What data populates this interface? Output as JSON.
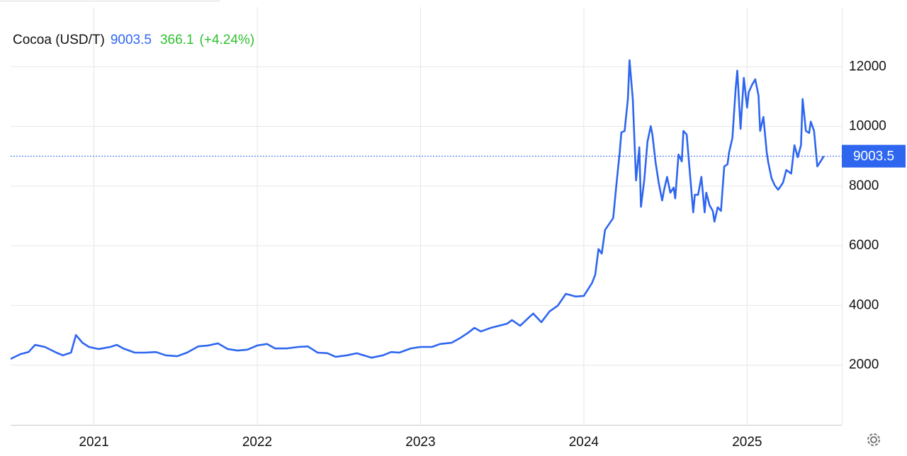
{
  "chart_data": {
    "type": "line",
    "title": "Cocoa (USD/T)",
    "change": 366.1,
    "change_label": "(+4.24%)",
    "xlim": [
      2020.49,
      2025.58
    ],
    "ylim": [
      0,
      14000
    ],
    "xticks": [
      2021,
      2022,
      2023,
      2024,
      2025
    ],
    "yticks": [
      2000,
      4000,
      6000,
      8000,
      10000,
      12000
    ],
    "grid": true,
    "series": [
      {
        "color": "#2e66f0",
        "x": [
          2020.49,
          2020.55,
          2020.6,
          2020.64,
          2020.7,
          2020.77,
          2020.81,
          2020.86,
          2020.89,
          2020.93,
          2020.97,
          2021.03,
          2021.1,
          2021.14,
          2021.18,
          2021.25,
          2021.31,
          2021.38,
          2021.44,
          2021.51,
          2021.57,
          2021.64,
          2021.7,
          2021.76,
          2021.82,
          2021.88,
          2021.94,
          2022.0,
          2022.06,
          2022.11,
          2022.18,
          2022.25,
          2022.31,
          2022.37,
          2022.43,
          2022.48,
          2022.55,
          2022.61,
          2022.7,
          2022.77,
          2022.82,
          2022.87,
          2022.94,
          2023.0,
          2023.07,
          2023.12,
          2023.19,
          2023.24,
          2023.29,
          2023.33,
          2023.37,
          2023.43,
          2023.48,
          2023.53,
          2023.56,
          2023.61,
          2023.66,
          2023.69,
          2023.74,
          2023.79,
          2023.84,
          2023.89,
          2023.95,
          2024.0,
          2024.05,
          2024.07,
          2024.09,
          2024.11,
          2024.13,
          2024.18,
          2024.2,
          2024.22,
          2024.23,
          2024.25,
          2024.27,
          2024.28,
          2024.3,
          2024.32,
          2024.34,
          2024.35,
          2024.37,
          2024.39,
          2024.41,
          2024.42,
          2024.44,
          2024.46,
          2024.48,
          2024.49,
          2024.51,
          2024.53,
          2024.55,
          2024.56,
          2024.58,
          2024.6,
          2024.61,
          2024.63,
          2024.65,
          2024.67,
          2024.68,
          2024.7,
          2024.72,
          2024.74,
          2024.75,
          2024.77,
          2024.79,
          2024.8,
          2024.82,
          2024.84,
          2024.86,
          2024.88,
          2024.89,
          2024.91,
          2024.93,
          2024.94,
          2024.96,
          2024.98,
          2025.0,
          2025.01,
          2025.03,
          2025.05,
          2025.07,
          2025.08,
          2025.1,
          2025.12,
          2025.13,
          2025.15,
          2025.17,
          2025.19,
          2025.2,
          2025.22,
          2025.24,
          2025.27,
          2025.29,
          2025.31,
          2025.33,
          2025.34,
          2025.36,
          2025.38,
          2025.39,
          2025.41,
          2025.43,
          2025.45,
          2025.47
        ],
        "values": [
          2210,
          2370,
          2440,
          2680,
          2610,
          2420,
          2330,
          2420,
          3010,
          2750,
          2610,
          2540,
          2610,
          2680,
          2560,
          2420,
          2420,
          2440,
          2330,
          2300,
          2420,
          2630,
          2660,
          2730,
          2540,
          2490,
          2520,
          2660,
          2710,
          2560,
          2560,
          2610,
          2630,
          2420,
          2400,
          2280,
          2330,
          2400,
          2250,
          2330,
          2440,
          2420,
          2560,
          2610,
          2610,
          2710,
          2750,
          2900,
          3080,
          3250,
          3130,
          3250,
          3320,
          3390,
          3510,
          3320,
          3580,
          3730,
          3440,
          3800,
          3990,
          4390,
          4300,
          4320,
          4750,
          5030,
          5890,
          5740,
          6530,
          6930,
          8070,
          9140,
          9800,
          9850,
          10920,
          12220,
          10920,
          8190,
          9300,
          7310,
          8190,
          9490,
          10010,
          9730,
          8780,
          8070,
          7520,
          7830,
          8310,
          7780,
          7950,
          7590,
          9060,
          8830,
          9850,
          9730,
          8420,
          7120,
          7710,
          7710,
          8310,
          7120,
          7780,
          7360,
          7170,
          6810,
          7290,
          7170,
          8660,
          8730,
          9140,
          9610,
          11270,
          11870,
          9920,
          11630,
          10630,
          11150,
          11390,
          11580,
          11030,
          9850,
          10320,
          9140,
          8780,
          8260,
          8020,
          7880,
          7950,
          8120,
          8540,
          8420,
          9370,
          8970,
          9370,
          10920,
          9850,
          9780,
          10160,
          9850,
          8660,
          8830,
          9003.5
        ]
      }
    ]
  }
}
